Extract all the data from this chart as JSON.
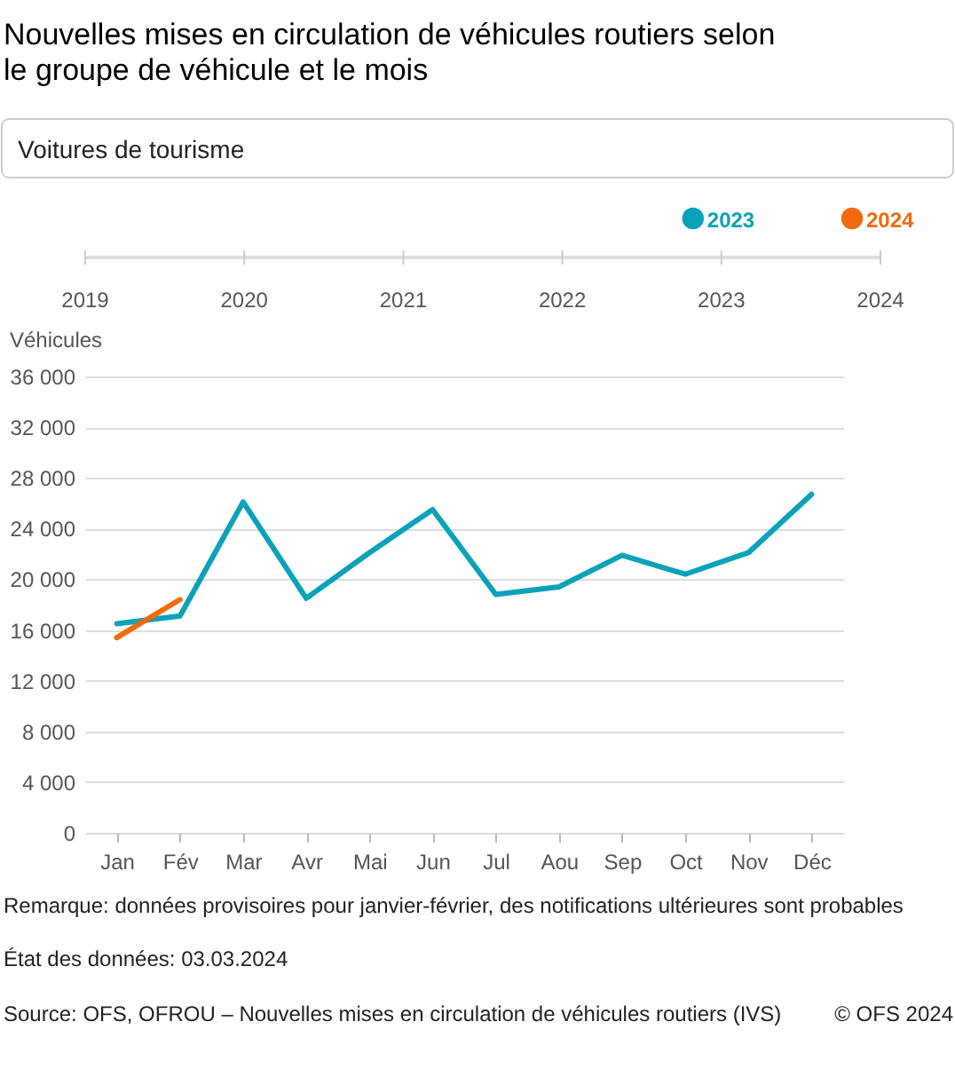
{
  "chart_data": {
    "type": "line",
    "title": "Nouvelles mises en circulation de véhicules routiers selon le groupe de véhicule et le mois",
    "ylabel": "Véhicules",
    "categories": [
      "Jan",
      "Fév",
      "Mar",
      "Avr",
      "Mai",
      "Jun",
      "Jul",
      "Aou",
      "Sep",
      "Oct",
      "Nov",
      "Déc"
    ],
    "series": [
      {
        "name": "2023",
        "color": "#0aa2b8",
        "values": [
          16500,
          17100,
          26100,
          18500,
          22100,
          25500,
          18800,
          19400,
          21900,
          20400,
          22100,
          26700
        ]
      },
      {
        "name": "2024",
        "color": "#f26b0a",
        "values": [
          15400,
          18400,
          null,
          null,
          null,
          null,
          null,
          null,
          null,
          null,
          null,
          null
        ]
      }
    ],
    "ylim": [
      0,
      36000
    ],
    "yticks": [
      0,
      {
        "value": 4000,
        "label": "4 000"
      },
      {
        "value": 8000,
        "label": "8 000"
      },
      {
        "value": 12000,
        "label": "12 000"
      },
      {
        "value": 16000,
        "label": "16 000"
      },
      {
        "value": 20000,
        "label": "20 000"
      },
      {
        "value": 24000,
        "label": "24 000"
      },
      {
        "value": 28000,
        "label": "28 000"
      },
      {
        "value": 32000,
        "label": "32 000"
      },
      {
        "value": 36000,
        "label": "36 000"
      }
    ],
    "grid": "y",
    "legend": "top",
    "line_style": "solid",
    "annotations": [
      "Voitures de tourisme",
      "2019",
      "2020",
      "2021",
      "2022",
      "2023",
      "2024",
      "Remarque: données provisoires pour janvier-février, des notifications ultérieures sont probables",
      "État des données: 03.03.2024",
      "Source: OFS, OFROU – Nouvelles mises en circulation de véhicules routiers (IVS)",
      "© OFS 2024"
    ]
  }
}
